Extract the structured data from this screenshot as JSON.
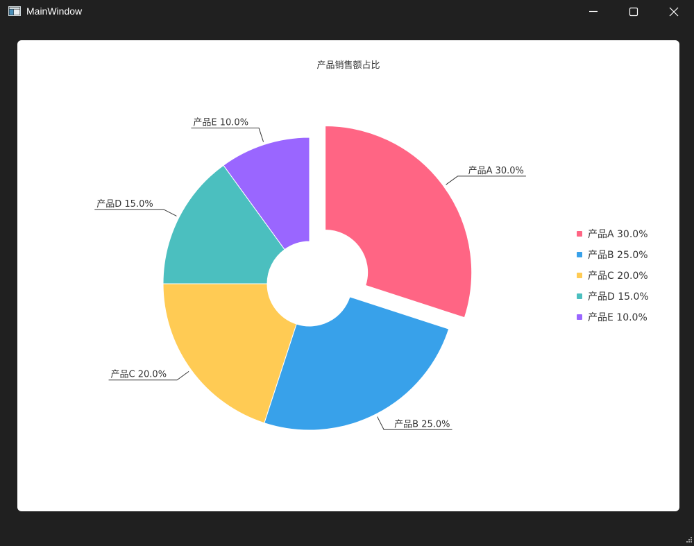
{
  "window": {
    "title": "MainWindow",
    "controls": {
      "minimize": "minimize",
      "maximize": "maximize",
      "close": "close"
    }
  },
  "chart_data": {
    "type": "pie",
    "variant": "donut",
    "title": "产品销售额占比",
    "categories": [
      "产品A",
      "产品B",
      "产品C",
      "产品D",
      "产品E"
    ],
    "values": [
      30.0,
      25.0,
      20.0,
      15.0,
      10.0
    ],
    "labels": [
      "产品A 30.0%",
      "产品B 25.0%",
      "产品C 20.0%",
      "产品D 15.0%",
      "产品E 10.0%"
    ],
    "colors": [
      "#ff6584",
      "#38a1ea",
      "#ffcb54",
      "#4bbfbf",
      "#9a66ff"
    ],
    "exploded": [
      "产品A"
    ],
    "legend": {
      "position": "right",
      "items": [
        "产品A 30.0%",
        "产品B 25.0%",
        "产品C 20.0%",
        "产品D 15.0%",
        "产品E 10.0%"
      ]
    }
  }
}
